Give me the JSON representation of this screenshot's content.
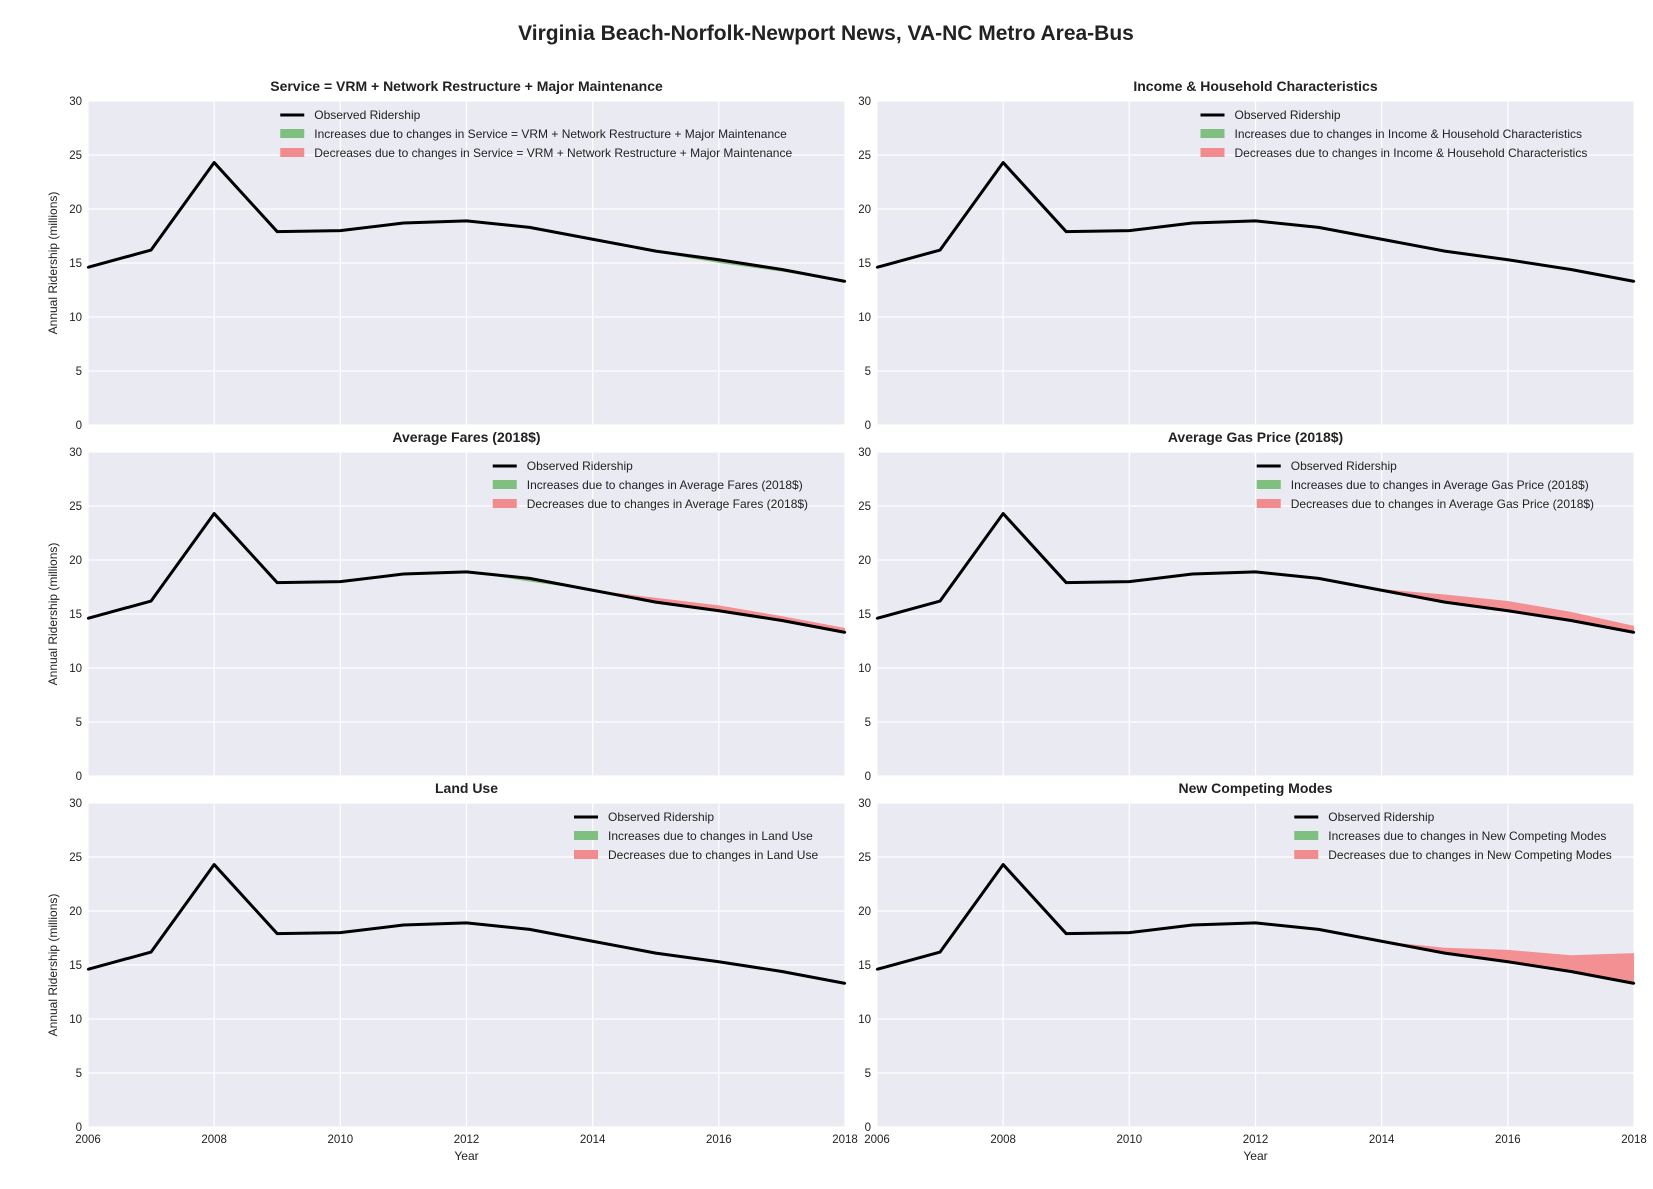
{
  "figure": {
    "title": "Virginia Beach-Norfolk-Newport News, VA-NC Metro Area-Bus",
    "xlabel": "Year",
    "ylabel": "Annual Ridership (millions)",
    "observed_label": "Observed Ridership",
    "inc_prefix": "Increases due to changes in ",
    "dec_prefix": "Decreases due to changes in ",
    "colors": {
      "background": "#eaeaf2",
      "grid": "#ffffff",
      "line": "#000000",
      "increase": "#7fbf7f",
      "decrease": "#f28b8e"
    }
  },
  "chart_data": [
    {
      "type": "area",
      "title": "Service = VRM + Network Restructure + Major Maintenance",
      "x": [
        2006,
        2007,
        2008,
        2009,
        2010,
        2011,
        2012,
        2013,
        2014,
        2015,
        2016,
        2017,
        2018
      ],
      "xlim": [
        2006,
        2018
      ],
      "ylim": [
        0,
        30
      ],
      "xticks": [
        2006,
        2008,
        2010,
        2012,
        2014,
        2016,
        2018
      ],
      "yticks": [
        0,
        5,
        10,
        15,
        20,
        25,
        30
      ],
      "grid": true,
      "legend_placement": "top-right",
      "series": [
        {
          "name": "Observed Ridership",
          "values": [
            14.6,
            16.2,
            24.3,
            17.9,
            18.0,
            18.7,
            18.9,
            18.3,
            17.2,
            16.1,
            15.3,
            14.4,
            13.3
          ]
        },
        {
          "name": "Increases due to changes in Service = VRM + Network Restructure + Major Maintenance",
          "values": [
            14.6,
            16.2,
            24.3,
            17.9,
            18.0,
            18.7,
            18.9,
            18.3,
            17.2,
            16.0,
            15.0,
            14.2,
            13.3
          ]
        },
        {
          "name": "Decreases due to changes in Service = VRM + Network Restructure + Major Maintenance",
          "values": [
            14.6,
            16.2,
            24.3,
            17.9,
            18.0,
            18.7,
            18.9,
            18.3,
            17.2,
            16.1,
            15.3,
            14.4,
            13.3
          ]
        }
      ]
    },
    {
      "type": "area",
      "title": "Income & Household Characteristics",
      "x": [
        2006,
        2007,
        2008,
        2009,
        2010,
        2011,
        2012,
        2013,
        2014,
        2015,
        2016,
        2017,
        2018
      ],
      "xlim": [
        2006,
        2018
      ],
      "ylim": [
        0,
        30
      ],
      "xticks": [
        2006,
        2008,
        2010,
        2012,
        2014,
        2016,
        2018
      ],
      "yticks": [
        0,
        5,
        10,
        15,
        20,
        25,
        30
      ],
      "grid": true,
      "legend_placement": "top-right",
      "series": [
        {
          "name": "Observed Ridership",
          "values": [
            14.6,
            16.2,
            24.3,
            17.9,
            18.0,
            18.7,
            18.9,
            18.3,
            17.2,
            16.1,
            15.3,
            14.4,
            13.3
          ]
        },
        {
          "name": "Increases due to changes in Income & Household Characteristics",
          "values": [
            14.6,
            16.2,
            24.3,
            17.9,
            18.0,
            18.7,
            18.9,
            18.3,
            17.2,
            16.1,
            15.3,
            14.4,
            13.3
          ]
        },
        {
          "name": "Decreases due to changes in Income & Household Characteristics",
          "values": [
            14.6,
            16.2,
            24.3,
            17.9,
            18.0,
            18.7,
            18.9,
            18.3,
            17.2,
            16.1,
            15.3,
            14.4,
            13.3
          ]
        }
      ]
    },
    {
      "type": "area",
      "title": "Average Fares (2018$)",
      "x": [
        2006,
        2007,
        2008,
        2009,
        2010,
        2011,
        2012,
        2013,
        2014,
        2015,
        2016,
        2017,
        2018
      ],
      "xlim": [
        2006,
        2018
      ],
      "ylim": [
        0,
        30
      ],
      "xticks": [
        2006,
        2008,
        2010,
        2012,
        2014,
        2016,
        2018
      ],
      "yticks": [
        0,
        5,
        10,
        15,
        20,
        25,
        30
      ],
      "grid": true,
      "legend_placement": "top-right",
      "series": [
        {
          "name": "Observed Ridership",
          "values": [
            14.6,
            16.2,
            24.3,
            17.9,
            18.0,
            18.7,
            18.9,
            18.3,
            17.2,
            16.1,
            15.3,
            14.4,
            13.3
          ]
        },
        {
          "name": "Increases due to changes in Average Fares (2018$)",
          "values": [
            14.6,
            16.2,
            24.3,
            17.9,
            18.0,
            18.7,
            18.9,
            18.0,
            17.2,
            16.1,
            15.3,
            14.4,
            13.3
          ]
        },
        {
          "name": "Decreases due to changes in Average Fares (2018$)",
          "values": [
            14.6,
            16.2,
            24.3,
            17.9,
            18.0,
            18.7,
            18.9,
            18.3,
            17.2,
            16.5,
            15.8,
            14.8,
            13.7
          ]
        }
      ]
    },
    {
      "type": "area",
      "title": "Average Gas Price (2018$)",
      "x": [
        2006,
        2007,
        2008,
        2009,
        2010,
        2011,
        2012,
        2013,
        2014,
        2015,
        2016,
        2017,
        2018
      ],
      "xlim": [
        2006,
        2018
      ],
      "ylim": [
        0,
        30
      ],
      "xticks": [
        2006,
        2008,
        2010,
        2012,
        2014,
        2016,
        2018
      ],
      "yticks": [
        0,
        5,
        10,
        15,
        20,
        25,
        30
      ],
      "grid": true,
      "legend_placement": "top-right",
      "series": [
        {
          "name": "Observed Ridership",
          "values": [
            14.6,
            16.2,
            24.3,
            17.9,
            18.0,
            18.7,
            18.9,
            18.3,
            17.2,
            16.1,
            15.3,
            14.4,
            13.3
          ]
        },
        {
          "name": "Increases due to changes in Average Gas Price (2018$)",
          "values": [
            14.6,
            16.2,
            24.3,
            17.9,
            18.0,
            18.7,
            18.9,
            18.3,
            17.2,
            16.1,
            15.3,
            14.4,
            13.3
          ]
        },
        {
          "name": "Decreases due to changes in Average Gas Price (2018$)",
          "values": [
            14.6,
            16.2,
            24.3,
            17.9,
            18.0,
            18.7,
            18.9,
            18.3,
            17.3,
            16.8,
            16.2,
            15.2,
            13.9
          ]
        }
      ]
    },
    {
      "type": "area",
      "title": "Land Use",
      "x": [
        2006,
        2007,
        2008,
        2009,
        2010,
        2011,
        2012,
        2013,
        2014,
        2015,
        2016,
        2017,
        2018
      ],
      "xlim": [
        2006,
        2018
      ],
      "ylim": [
        0,
        30
      ],
      "xticks": [
        2006,
        2008,
        2010,
        2012,
        2014,
        2016,
        2018
      ],
      "yticks": [
        0,
        5,
        10,
        15,
        20,
        25,
        30
      ],
      "grid": true,
      "legend_placement": "top-right",
      "series": [
        {
          "name": "Observed Ridership",
          "values": [
            14.6,
            16.2,
            24.3,
            17.9,
            18.0,
            18.7,
            18.9,
            18.3,
            17.2,
            16.1,
            15.3,
            14.4,
            13.3
          ]
        },
        {
          "name": "Increases due to changes in Land Use",
          "values": [
            14.6,
            16.2,
            24.3,
            17.9,
            18.0,
            18.7,
            18.9,
            18.3,
            17.2,
            16.1,
            15.3,
            14.4,
            13.3
          ]
        },
        {
          "name": "Decreases due to changes in Land Use",
          "values": [
            14.6,
            16.2,
            24.3,
            17.9,
            18.0,
            18.7,
            18.9,
            18.3,
            17.2,
            16.1,
            15.3,
            14.4,
            13.3
          ]
        }
      ]
    },
    {
      "type": "area",
      "title": "New Competing Modes",
      "x": [
        2006,
        2007,
        2008,
        2009,
        2010,
        2011,
        2012,
        2013,
        2014,
        2015,
        2016,
        2017,
        2018
      ],
      "xlim": [
        2006,
        2018
      ],
      "ylim": [
        0,
        30
      ],
      "xticks": [
        2006,
        2008,
        2010,
        2012,
        2014,
        2016,
        2018
      ],
      "yticks": [
        0,
        5,
        10,
        15,
        20,
        25,
        30
      ],
      "grid": true,
      "legend_placement": "top-right",
      "series": [
        {
          "name": "Observed Ridership",
          "values": [
            14.6,
            16.2,
            24.3,
            17.9,
            18.0,
            18.7,
            18.9,
            18.3,
            17.2,
            16.1,
            15.3,
            14.4,
            13.3
          ]
        },
        {
          "name": "Increases due to changes in New Competing Modes",
          "values": [
            14.6,
            16.2,
            24.3,
            17.9,
            18.0,
            18.7,
            18.9,
            18.3,
            17.2,
            16.1,
            15.3,
            14.4,
            13.3
          ]
        },
        {
          "name": "Decreases due to changes in New Competing Modes",
          "values": [
            14.6,
            16.2,
            24.3,
            17.9,
            18.0,
            18.7,
            18.9,
            18.3,
            17.2,
            16.6,
            16.4,
            15.9,
            16.1
          ]
        }
      ]
    }
  ]
}
